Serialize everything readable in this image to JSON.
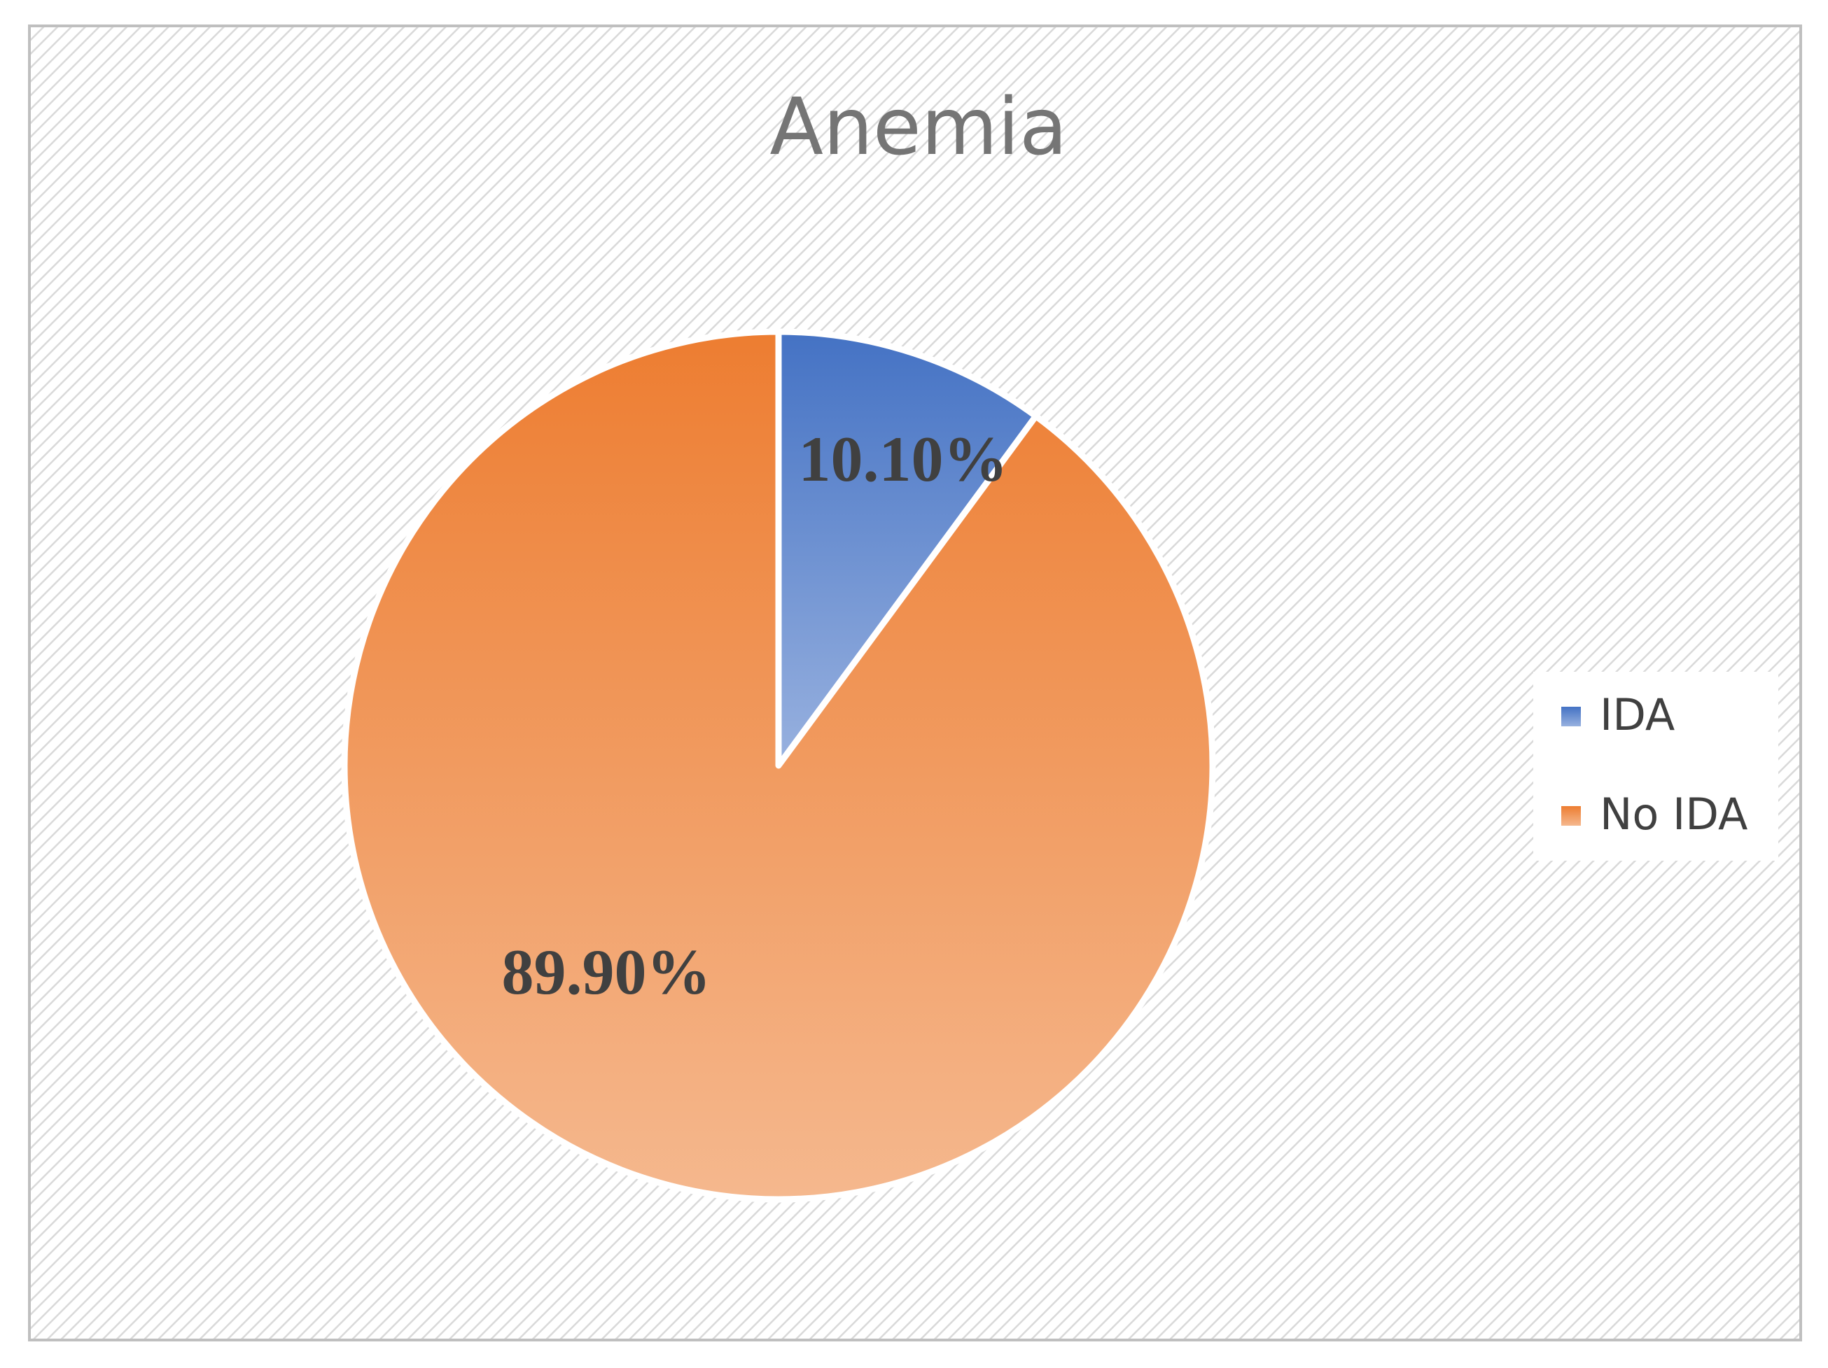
{
  "chart_data": {
    "type": "pie",
    "title": "Anemia",
    "categories": [
      "IDA",
      "No IDA"
    ],
    "values": [
      10.1,
      89.9
    ],
    "value_labels": [
      "10.10%",
      "89.90%"
    ],
    "colors": [
      "#4472c4",
      "#ed7d31"
    ],
    "legend": "right"
  }
}
